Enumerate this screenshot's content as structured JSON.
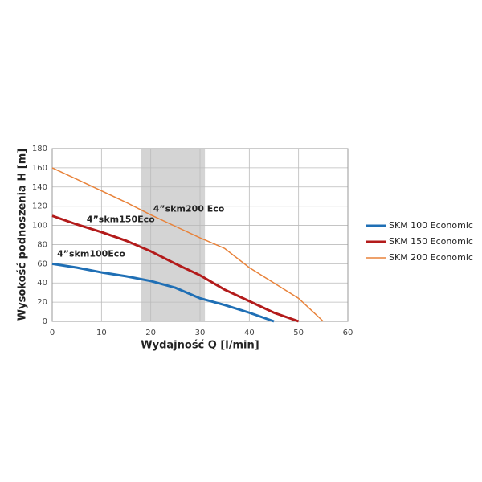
{
  "chart_data": {
    "type": "line",
    "xlabel": "Wydajność Q [l/min]",
    "ylabel": "Wysokość podnoszenia H [m]",
    "xlim": [
      0,
      60
    ],
    "xticks": [
      0,
      10,
      20,
      30,
      40,
      50,
      60
    ],
    "ylim": [
      0,
      180
    ],
    "yticks": [
      0,
      20,
      40,
      60,
      80,
      100,
      120,
      140,
      160,
      180
    ],
    "grid": true,
    "highlight_x": [
      18,
      31
    ],
    "legend": "right",
    "series": [
      {
        "name": "SKM 100 Economic",
        "color": "#1f6fb5",
        "x": [
          0,
          5,
          10,
          15,
          20,
          25,
          30,
          35,
          40,
          45
        ],
        "values": [
          60,
          56,
          51,
          47,
          42,
          35,
          24,
          17,
          9,
          0
        ]
      },
      {
        "name": "SKM 150 Economic",
        "color": "#b31b1b",
        "x": [
          0,
          5,
          10,
          15,
          20,
          25,
          30,
          35,
          40,
          45,
          50
        ],
        "values": [
          110,
          101,
          93,
          84,
          73,
          60,
          48,
          33,
          21,
          9,
          0
        ]
      },
      {
        "name": "SKM 200 Economic",
        "color": "#e8823a",
        "x": [
          0,
          5,
          10,
          15,
          20,
          25,
          30,
          35,
          40,
          45,
          50,
          55
        ],
        "values": [
          160,
          148,
          136,
          124,
          111,
          99,
          87,
          76,
          56,
          40,
          24,
          0
        ]
      }
    ],
    "annotations": [
      {
        "text": "4”skm200 Eco",
        "x": 20.5,
        "y": 117
      },
      {
        "text": "4”skm150Eco",
        "x": 7,
        "y": 106
      },
      {
        "text": "4”skm100Eco",
        "x": 1,
        "y": 70
      }
    ]
  }
}
